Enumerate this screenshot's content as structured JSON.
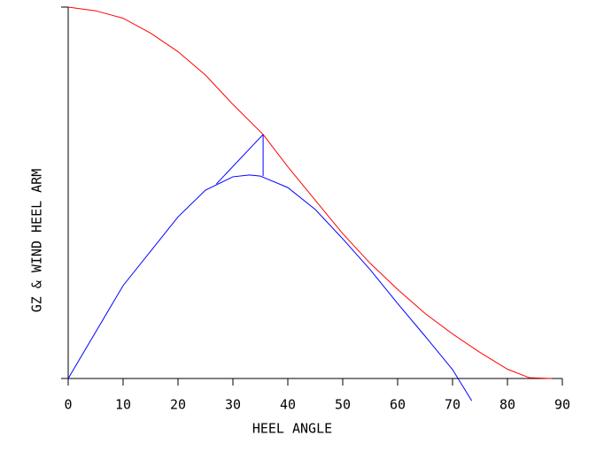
{
  "chart_data": {
    "type": "line",
    "x_label": "HEEL ANGLE",
    "y_label": "GZ & WIND HEEL ARM",
    "xlim": [
      0,
      90
    ],
    "ylim": [
      0,
      1
    ],
    "xticks": [
      0,
      10,
      20,
      30,
      40,
      50,
      60,
      70,
      80,
      90
    ],
    "series": [
      {
        "color": "#ff0000",
        "x": [
          0,
          5,
          10,
          15,
          20,
          25,
          30,
          35.5,
          40,
          45,
          50,
          55,
          60,
          65,
          70,
          75,
          80,
          84,
          88
        ],
        "values": [
          1.0,
          0.99,
          0.97,
          0.93,
          0.88,
          0.817,
          0.738,
          0.657,
          0.57,
          0.48,
          0.39,
          0.31,
          0.24,
          0.175,
          0.12,
          0.07,
          0.025,
          0.002,
          0.0
        ]
      },
      {
        "color": "#0000ff",
        "x": [
          0,
          10,
          20,
          25,
          30,
          33,
          35,
          40,
          45,
          50,
          55,
          60,
          65,
          70,
          73.5
        ],
        "values": [
          0,
          0.25,
          0.435,
          0.507,
          0.543,
          0.548,
          0.545,
          0.514,
          0.455,
          0.376,
          0.293,
          0.202,
          0.114,
          0.024,
          -0.06
        ]
      },
      {
        "color": "#0000ff",
        "x": [
          27,
          35.5
        ],
        "values": [
          0.524,
          0.657
        ]
      },
      {
        "color": "#0000ff",
        "x": [
          35.5,
          35.5
        ],
        "values": [
          0.545,
          0.657
        ]
      }
    ]
  }
}
